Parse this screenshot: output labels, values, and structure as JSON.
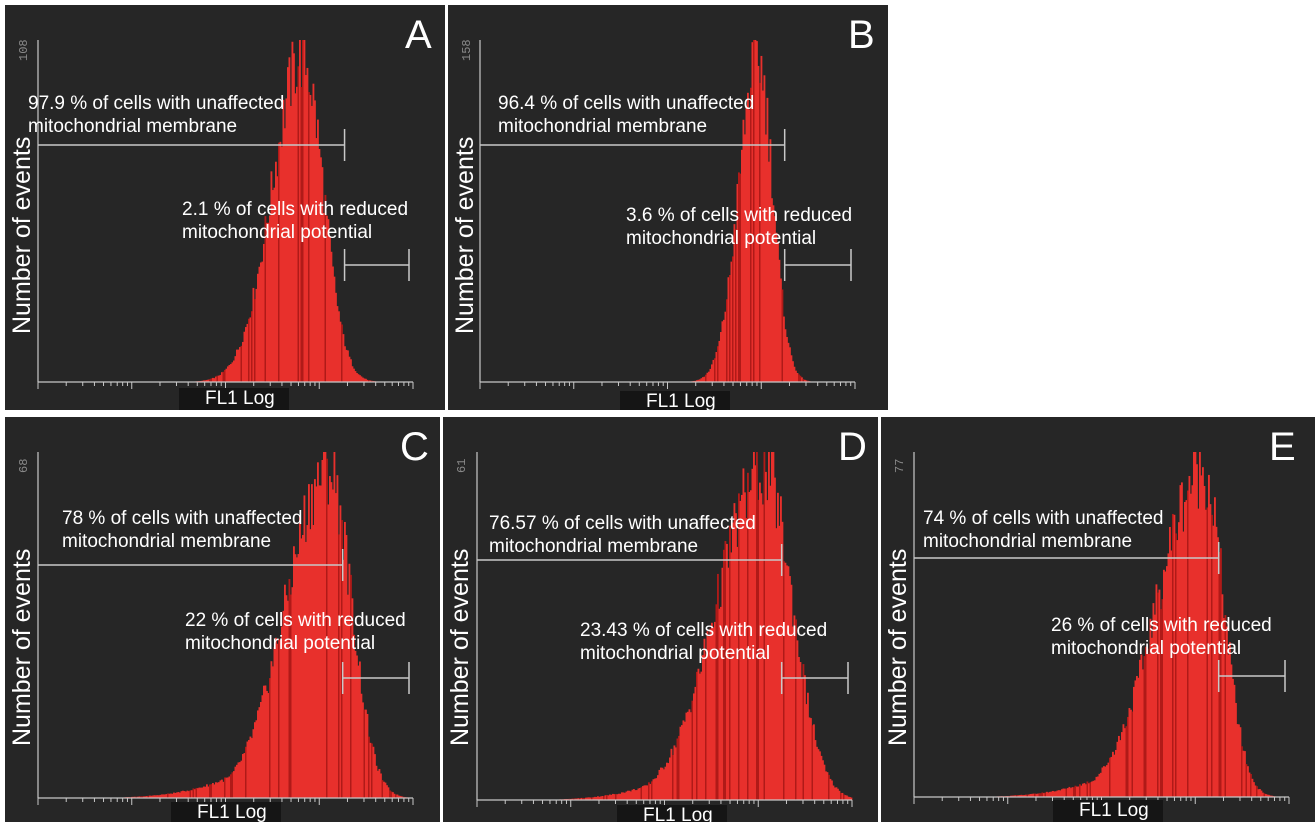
{
  "chart_data": [
    {
      "type": "area",
      "panel": "A",
      "ylabel": "Number of events",
      "xlabel": "FL1 Log",
      "ymax_label": "108",
      "ylim": [
        0,
        108
      ],
      "x_scale": "log",
      "x_decades": 4,
      "peak_decade": 2.82,
      "left_width": 0.32,
      "right_width": 0.22,
      "tail": 0.0,
      "gate_split_decade": 3.27,
      "gates": [
        {
          "label": "97.9 % of cells with unaffected mitochondrial membrane",
          "percent": 97.9
        },
        {
          "label": "2.1 % of cells with reduced mitochondrial potential",
          "percent": 2.1
        }
      ]
    },
    {
      "type": "area",
      "panel": "B",
      "ylabel": "Number of events",
      "xlabel": "FL1 Log",
      "ymax_label": "158",
      "ylim": [
        0,
        158
      ],
      "x_scale": "log",
      "x_decades": 4,
      "peak_decade": 2.96,
      "left_width": 0.2,
      "right_width": 0.16,
      "tail": 0.0,
      "gate_split_decade": 3.25,
      "gates": [
        {
          "label": "96.4 % of cells with unaffected mitochondrial membrane",
          "percent": 96.4
        },
        {
          "label": "3.6 % of cells with reduced mitochondrial potential",
          "percent": 3.6
        }
      ]
    },
    {
      "type": "area",
      "panel": "C",
      "ylabel": "Number of events",
      "xlabel": "FL1 Log",
      "ymax_label": "68",
      "ylim": [
        0,
        68
      ],
      "x_scale": "log",
      "x_decades": 4,
      "peak_decade": 3.1,
      "left_width": 0.45,
      "right_width": 0.24,
      "tail": 0.17,
      "gate_split_decade": 3.25,
      "gates": [
        {
          "label": "78 % of cells with unaffected mitochondrial membrane",
          "percent": 78
        },
        {
          "label": "22 % of cells with reduced mitochondrial potential",
          "percent": 22
        }
      ]
    },
    {
      "type": "area",
      "panel": "D",
      "ylabel": "Number of events",
      "xlabel": "FL1 Log",
      "ymax_label": "61",
      "ylim": [
        0,
        61
      ],
      "x_scale": "log",
      "x_decades": 4,
      "peak_decade": 3.06,
      "left_width": 0.5,
      "right_width": 0.3,
      "tail": 0.17,
      "gate_split_decade": 3.25,
      "gates": [
        {
          "label": "76.57 % of cells with unaffected mitochondrial membrane",
          "percent": 76.57
        },
        {
          "label": "23.43 % of cells with reduced mitochondrial potential",
          "percent": 23.43
        }
      ]
    },
    {
      "type": "area",
      "panel": "E",
      "ylabel": "Number of events",
      "xlabel": "FL1 Log",
      "ymax_label": "77",
      "ylim": [
        0,
        77
      ],
      "x_scale": "log",
      "x_decades": 4,
      "peak_decade": 3.08,
      "left_width": 0.48,
      "right_width": 0.22,
      "tail": 0.17,
      "gate_split_decade": 3.25,
      "gates": [
        {
          "label": "74 % of cells with unaffected mitochondrial membrane",
          "percent": 74
        },
        {
          "label": "26 % of cells with reduced mitochondrial potential",
          "percent": 26
        }
      ]
    }
  ],
  "panels": {
    "a": {
      "letter": "A",
      "ymax": "108",
      "ylabel": "Number of events",
      "xlabel": "FL1 Log",
      "upper_line1": "97.9 % of cells with unaffected",
      "upper_line2": "mitochondrial membrane",
      "lower_line1": "2.1 % of cells with reduced",
      "lower_line2": "mitochondrial potential"
    },
    "b": {
      "letter": "B",
      "ymax": "158",
      "ylabel": "Number of events",
      "xlabel": "FL1 Log",
      "upper_line1": "96.4 % of cells with unaffected",
      "upper_line2": "mitochondrial membrane",
      "lower_line1": "3.6 % of cells with reduced",
      "lower_line2": "mitochondrial potential"
    },
    "c": {
      "letter": "C",
      "ymax": "68",
      "ylabel": "Number of events",
      "xlabel": "FL1 Log",
      "upper_line1": "78 % of cells with unaffected",
      "upper_line2": "mitochondrial membrane",
      "lower_line1": "22 % of cells with reduced",
      "lower_line2": "mitochondrial potential"
    },
    "d": {
      "letter": "D",
      "ymax": "61",
      "ylabel": "Number of events",
      "xlabel": "FL1 Log",
      "upper_line1": "76.57 % of cells with unaffected",
      "upper_line2": "mitochondrial membrane",
      "lower_line1": "23.43 % of cells with reduced",
      "lower_line2": "mitochondrial potential"
    },
    "e": {
      "letter": "E",
      "ymax": "77",
      "ylabel": "Number of events",
      "xlabel": "FL1 Log",
      "upper_line1": "74 % of cells with unaffected",
      "upper_line2": "mitochondrial membrane",
      "lower_line1": "26 % of cells with reduced",
      "lower_line2": "mitochondrial potential"
    }
  },
  "colors": {
    "panel_background": "#262626",
    "histogram": "#e8302c",
    "histogram_dark": "#b01a18",
    "axis": "#c8c8c8",
    "text": "#ffffff"
  }
}
